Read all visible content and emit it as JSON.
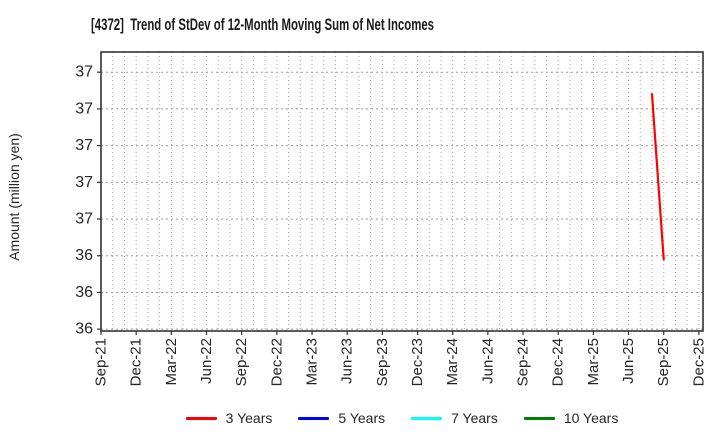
{
  "chart_data": {
    "type": "line",
    "title": "[4372]  Trend of StDev of 12-Month Moving Sum of Net Incomes",
    "ylabel": "Amount (million yen)",
    "x_axis": {
      "start_month": "Sep-21",
      "end_month": "Dec-25",
      "tick_labels": [
        "Sep-21",
        "Dec-21",
        "Mar-22",
        "Jun-22",
        "Sep-22",
        "Dec-22",
        "Mar-23",
        "Jun-23",
        "Sep-23",
        "Dec-23",
        "Mar-24",
        "Jun-24",
        "Sep-24",
        "Dec-24",
        "Mar-25",
        "Jun-25",
        "Sep-25",
        "Dec-25"
      ],
      "minor_grid": "monthly"
    },
    "y_axis": {
      "min": 35.99,
      "max": 37.51,
      "tick_values": [
        36.0,
        36.2,
        36.4,
        36.6,
        36.8,
        37.0,
        37.2,
        37.4
      ],
      "tick_labels": [
        "36",
        "36",
        "36",
        "37",
        "37",
        "37",
        "37",
        "37"
      ]
    },
    "grid": true,
    "legend_position": "bottom-center",
    "series": [
      {
        "name": "3 Years",
        "color": "#ff0000",
        "points": [
          {
            "month": "Aug-25",
            "value": 37.28
          },
          {
            "month": "Sep-25",
            "value": 36.38
          }
        ]
      },
      {
        "name": "5 Years",
        "color": "#0000ff",
        "points": []
      },
      {
        "name": "7 Years",
        "color": "#00ffff",
        "points": []
      },
      {
        "name": "10 Years",
        "color": "#008000",
        "points": []
      }
    ]
  },
  "style": {
    "background": "#ffffff",
    "grid_color": "#a6a6a6",
    "axis_color": "#333333",
    "tick_label_color": "#262626",
    "title_color": "#1a1a1a"
  }
}
